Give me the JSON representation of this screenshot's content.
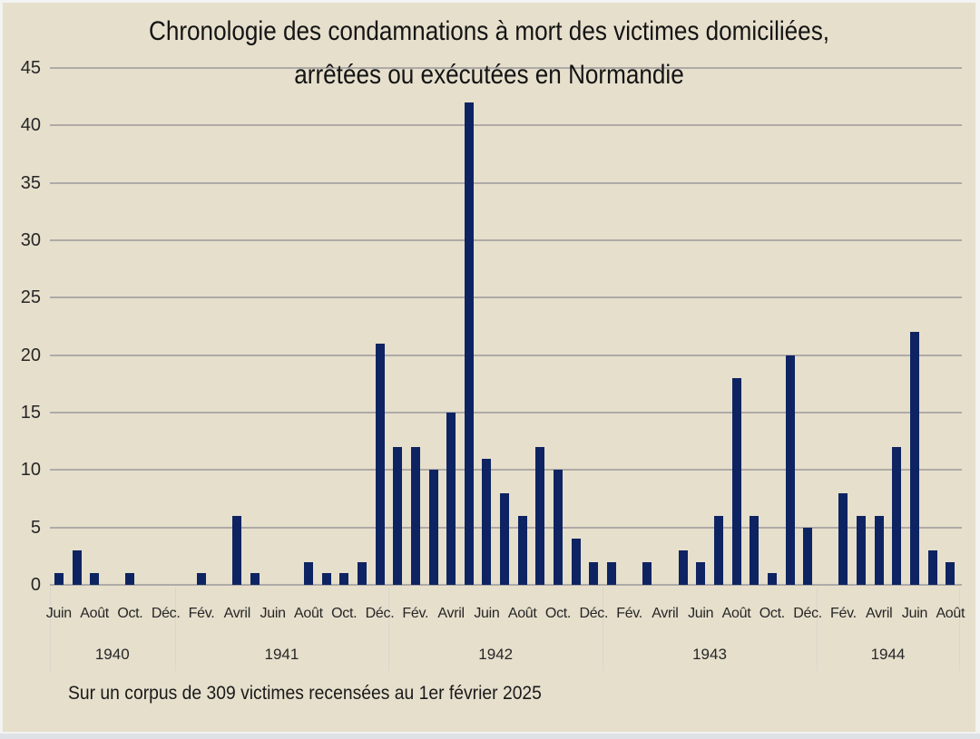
{
  "chart_data": {
    "type": "bar",
    "title_line1": "Chronologie des condamnations à mort des victimes domiciliées,",
    "title_line2": "arrêtées ou exécutées en Normandie",
    "footnote": "Sur un corpus de 309 victimes recensées au 1er février 2025",
    "ylim": [
      0,
      45
    ],
    "yticks": [
      0,
      5,
      10,
      15,
      20,
      25,
      30,
      35,
      40,
      45
    ],
    "grid": true,
    "legend_position": "none",
    "colors": {
      "bar": "#0e2462",
      "background": "#e6dfcc",
      "gridline": "#aeaaa7",
      "separator": "#d9d6cf",
      "text": "#262626"
    },
    "year_groups": [
      {
        "label": "1940",
        "month_count": 7
      },
      {
        "label": "1941",
        "month_count": 12
      },
      {
        "label": "1942",
        "month_count": 12
      },
      {
        "label": "1943",
        "month_count": 12
      },
      {
        "label": "1944",
        "month_count": 8
      }
    ],
    "months": [
      {
        "month": "Juin",
        "year": 1940,
        "value": 1,
        "tick": "Juin"
      },
      {
        "month": "Juillet",
        "year": 1940,
        "value": 3,
        "tick": null
      },
      {
        "month": "Août",
        "year": 1940,
        "value": 1,
        "tick": "Août"
      },
      {
        "month": "Septembre",
        "year": 1940,
        "value": 0,
        "tick": null
      },
      {
        "month": "Octobre",
        "year": 1940,
        "value": 1,
        "tick": "Oct."
      },
      {
        "month": "Novembre",
        "year": 1940,
        "value": 0,
        "tick": null
      },
      {
        "month": "Décembre",
        "year": 1940,
        "value": 0,
        "tick": "Déc."
      },
      {
        "month": "Janvier",
        "year": 1941,
        "value": 0,
        "tick": null
      },
      {
        "month": "Février",
        "year": 1941,
        "value": 1,
        "tick": "Fév."
      },
      {
        "month": "Mars",
        "year": 1941,
        "value": 0,
        "tick": null
      },
      {
        "month": "Avril",
        "year": 1941,
        "value": 6,
        "tick": "Avril"
      },
      {
        "month": "Mai",
        "year": 1941,
        "value": 1,
        "tick": null
      },
      {
        "month": "Juin",
        "year": 1941,
        "value": 0,
        "tick": "Juin"
      },
      {
        "month": "Juillet",
        "year": 1941,
        "value": 0,
        "tick": null
      },
      {
        "month": "Août",
        "year": 1941,
        "value": 2,
        "tick": "Août"
      },
      {
        "month": "Septembre",
        "year": 1941,
        "value": 1,
        "tick": null
      },
      {
        "month": "Octobre",
        "year": 1941,
        "value": 1,
        "tick": "Oct."
      },
      {
        "month": "Novembre",
        "year": 1941,
        "value": 2,
        "tick": null
      },
      {
        "month": "Décembre",
        "year": 1941,
        "value": 21,
        "tick": "Déc."
      },
      {
        "month": "Janvier",
        "year": 1942,
        "value": 12,
        "tick": null
      },
      {
        "month": "Février",
        "year": 1942,
        "value": 12,
        "tick": "Fév."
      },
      {
        "month": "Mars",
        "year": 1942,
        "value": 10,
        "tick": null
      },
      {
        "month": "Avril",
        "year": 1942,
        "value": 15,
        "tick": "Avril"
      },
      {
        "month": "Mai",
        "year": 1942,
        "value": 42,
        "tick": null
      },
      {
        "month": "Juin",
        "year": 1942,
        "value": 11,
        "tick": "Juin"
      },
      {
        "month": "Juillet",
        "year": 1942,
        "value": 8,
        "tick": null
      },
      {
        "month": "Août",
        "year": 1942,
        "value": 6,
        "tick": "Août"
      },
      {
        "month": "Septembre",
        "year": 1942,
        "value": 12,
        "tick": null
      },
      {
        "month": "Octobre",
        "year": 1942,
        "value": 10,
        "tick": "Oct."
      },
      {
        "month": "Novembre",
        "year": 1942,
        "value": 4,
        "tick": null
      },
      {
        "month": "Décembre",
        "year": 1942,
        "value": 2,
        "tick": "Déc."
      },
      {
        "month": "Janvier",
        "year": 1943,
        "value": 2,
        "tick": null
      },
      {
        "month": "Février",
        "year": 1943,
        "value": 0,
        "tick": "Fév."
      },
      {
        "month": "Mars",
        "year": 1943,
        "value": 2,
        "tick": null
      },
      {
        "month": "Avril",
        "year": 1943,
        "value": 0,
        "tick": "Avril"
      },
      {
        "month": "Mai",
        "year": 1943,
        "value": 3,
        "tick": null
      },
      {
        "month": "Juin",
        "year": 1943,
        "value": 2,
        "tick": "Juin"
      },
      {
        "month": "Juillet",
        "year": 1943,
        "value": 6,
        "tick": null
      },
      {
        "month": "Août",
        "year": 1943,
        "value": 18,
        "tick": "Août"
      },
      {
        "month": "Septembre",
        "year": 1943,
        "value": 6,
        "tick": null
      },
      {
        "month": "Octobre",
        "year": 1943,
        "value": 1,
        "tick": "Oct."
      },
      {
        "month": "Novembre",
        "year": 1943,
        "value": 20,
        "tick": null
      },
      {
        "month": "Décembre",
        "year": 1943,
        "value": 5,
        "tick": "Déc."
      },
      {
        "month": "Janvier",
        "year": 1944,
        "value": 0,
        "tick": null
      },
      {
        "month": "Février",
        "year": 1944,
        "value": 8,
        "tick": "Fév."
      },
      {
        "month": "Mars",
        "year": 1944,
        "value": 6,
        "tick": null
      },
      {
        "month": "Avril",
        "year": 1944,
        "value": 6,
        "tick": "Avril"
      },
      {
        "month": "Mai",
        "year": 1944,
        "value": 12,
        "tick": null
      },
      {
        "month": "Juin",
        "year": 1944,
        "value": 22,
        "tick": "Juin"
      },
      {
        "month": "Juillet",
        "year": 1944,
        "value": 3,
        "tick": null
      },
      {
        "month": "Août",
        "year": 1944,
        "value": 2,
        "tick": "Août"
      }
    ]
  }
}
